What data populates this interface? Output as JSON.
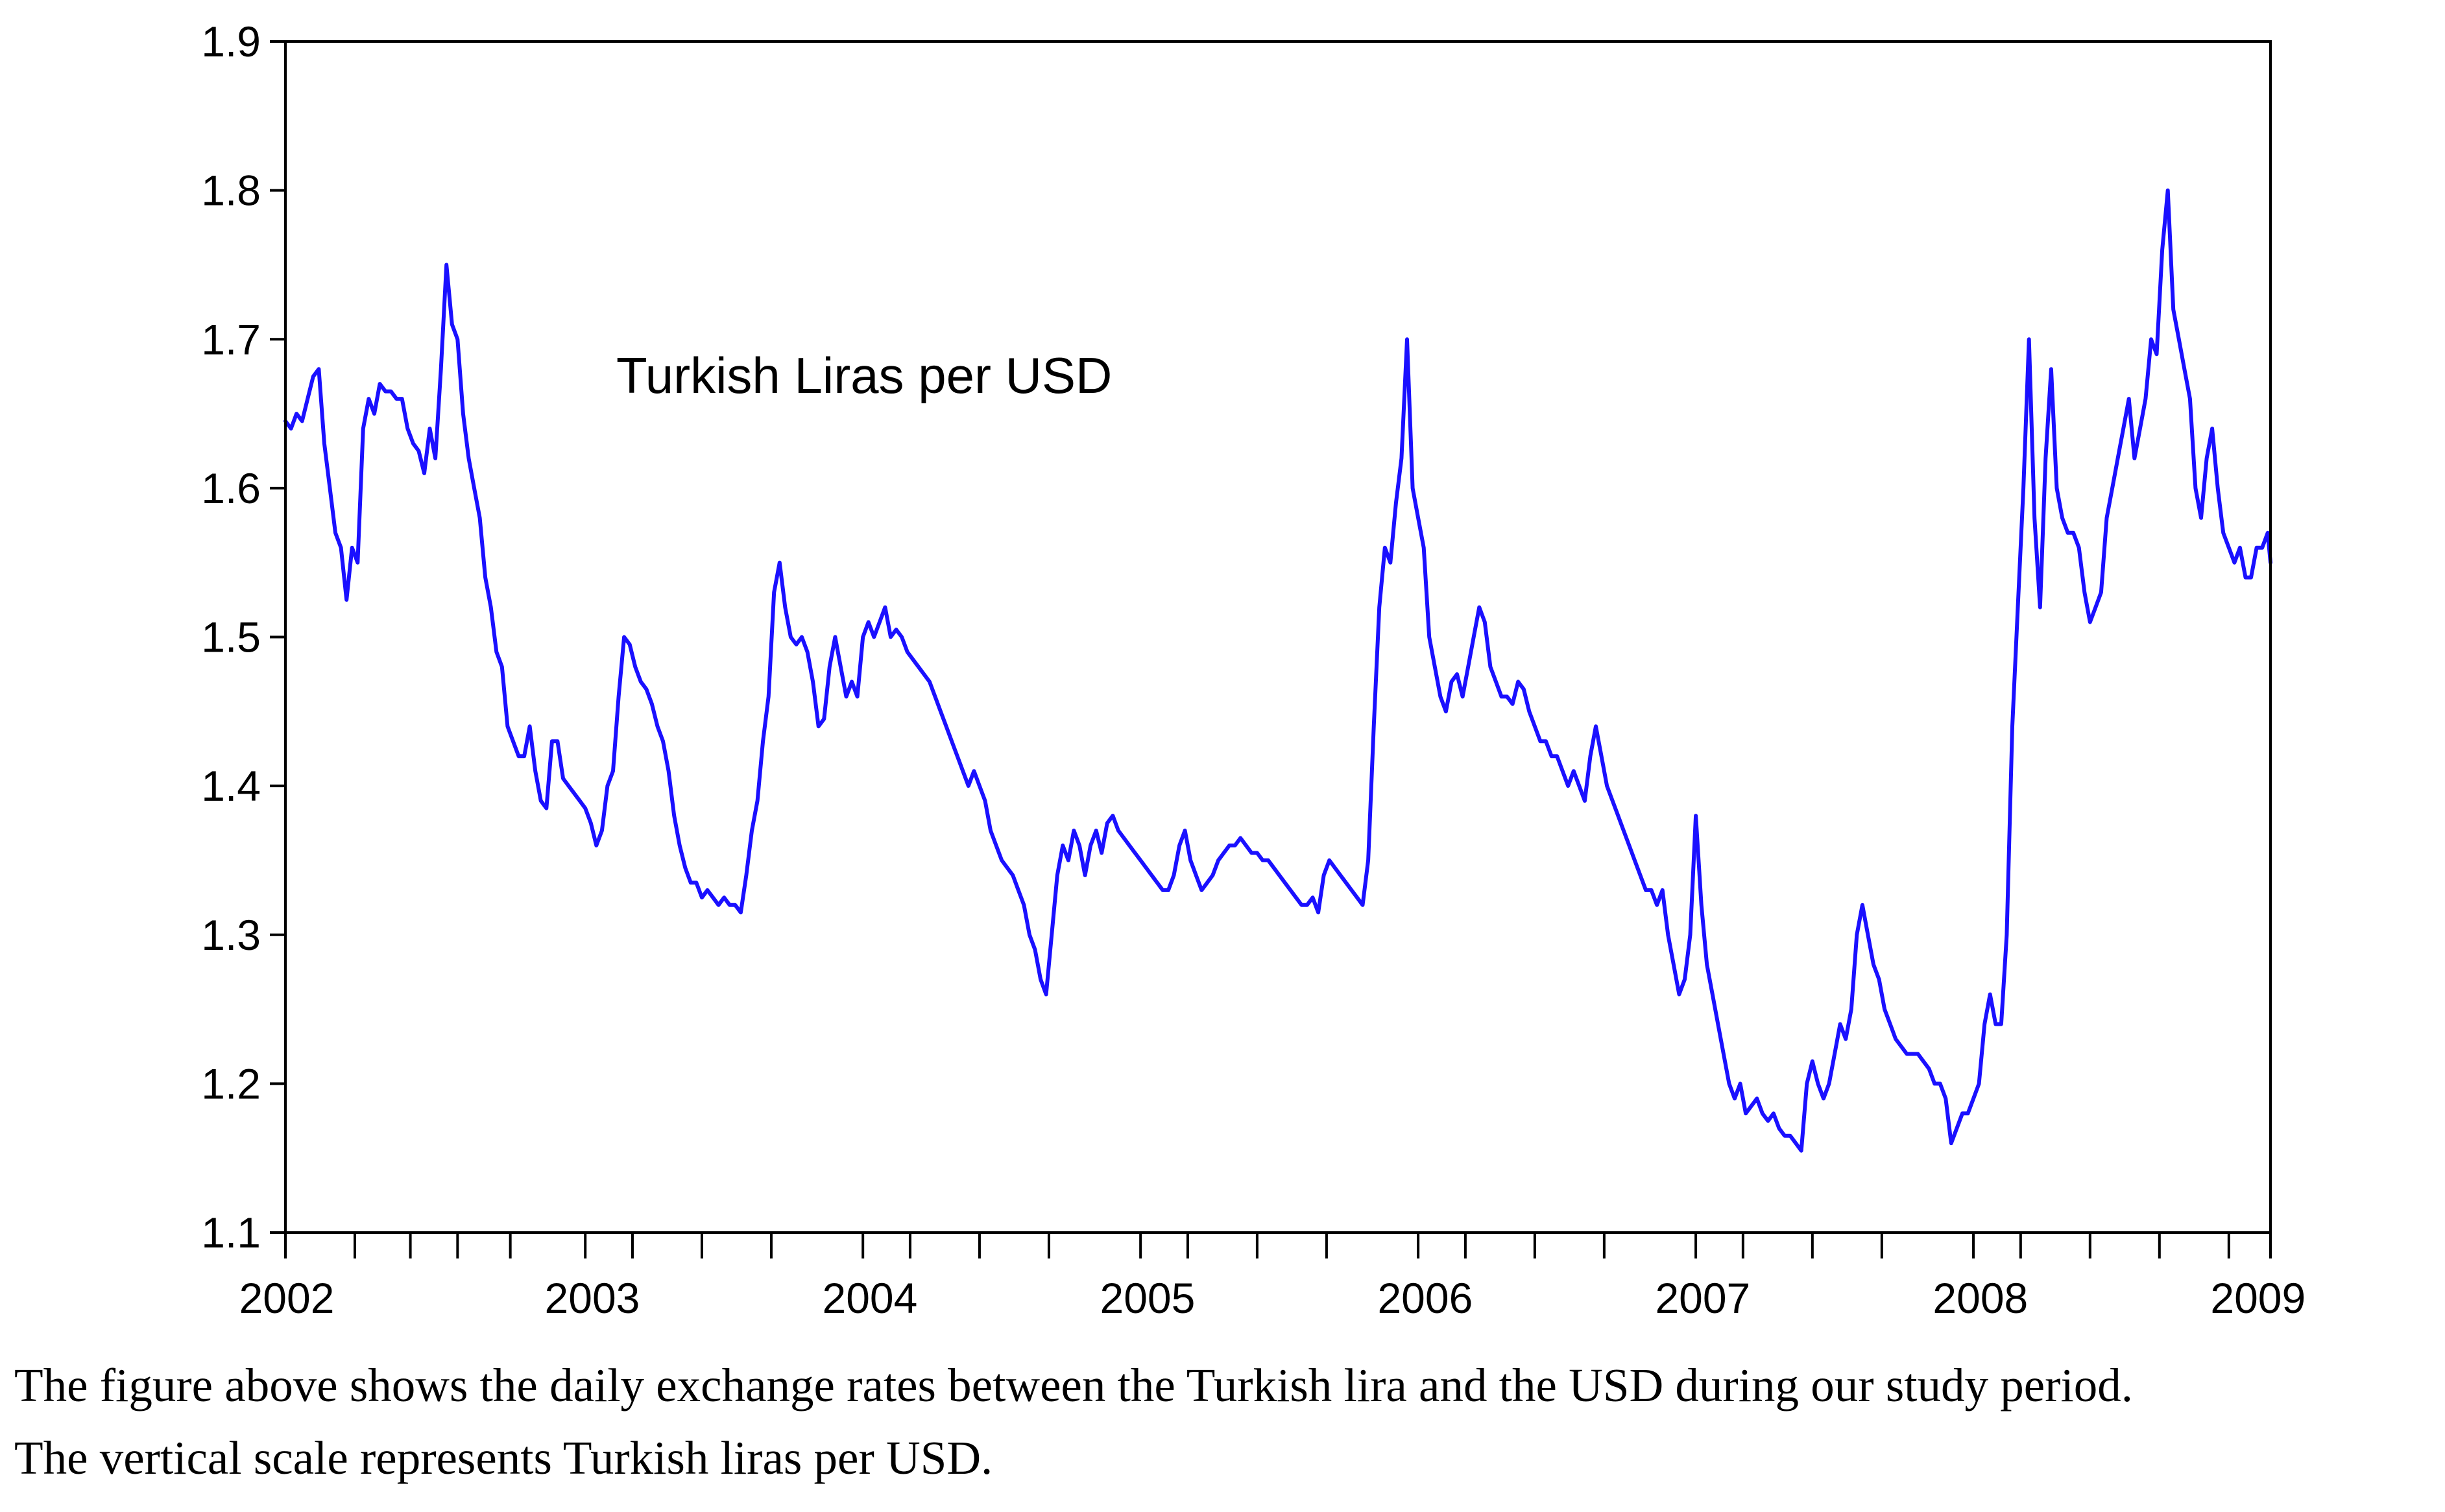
{
  "chart_data": {
    "type": "line",
    "title": "",
    "annotation": "Turkish Liras per USD",
    "xlabel": "",
    "ylabel": "",
    "ylim": [
      1.1,
      1.9
    ],
    "xlim": [
      2002.0,
      2009.15
    ],
    "grid": false,
    "series_color": "#1a10ff",
    "y_ticks": [
      1.1,
      1.2,
      1.3,
      1.4,
      1.5,
      1.6,
      1.7,
      1.8,
      1.9
    ],
    "y_tick_labels": [
      "1.1",
      "1.2",
      "1.3",
      "1.4",
      "1.5",
      "1.6",
      "1.7",
      "1.8",
      "1.9"
    ],
    "x_year_labels": [
      {
        "label": "2002",
        "x": 2002.0
      },
      {
        "label": "2003",
        "x": 2003.0
      },
      {
        "label": "2004",
        "x": 2004.0
      },
      {
        "label": "2005",
        "x": 2005.0
      },
      {
        "label": "2006",
        "x": 2006.0
      },
      {
        "label": "2007",
        "x": 2007.0
      },
      {
        "label": "2008",
        "x": 2008.0
      },
      {
        "label": "2009",
        "x": 2009.0
      }
    ],
    "x_minor_ticks": [
      2002.0,
      2002.25,
      2002.45,
      2002.62,
      2002.81,
      2003.08,
      2003.25,
      2003.5,
      2003.75,
      2004.08,
      2004.25,
      2004.5,
      2004.75,
      2005.08,
      2005.25,
      2005.5,
      2005.75,
      2006.08,
      2006.25,
      2006.5,
      2006.75,
      2007.08,
      2007.25,
      2007.5,
      2007.75,
      2008.08,
      2008.25,
      2008.5,
      2008.75,
      2009.0,
      2009.15
    ],
    "series": [
      {
        "name": "Turkish Liras per USD",
        "x": [
          2002.0,
          2002.02,
          2002.04,
          2002.06,
          2002.08,
          2002.1,
          2002.12,
          2002.14,
          2002.16,
          2002.18,
          2002.2,
          2002.22,
          2002.24,
          2002.26,
          2002.28,
          2002.3,
          2002.32,
          2002.34,
          2002.36,
          2002.38,
          2002.4,
          2002.42,
          2002.44,
          2002.46,
          2002.48,
          2002.5,
          2002.52,
          2002.54,
          2002.56,
          2002.58,
          2002.6,
          2002.62,
          2002.64,
          2002.66,
          2002.68,
          2002.7,
          2002.72,
          2002.74,
          2002.76,
          2002.78,
          2002.8,
          2002.82,
          2002.84,
          2002.86,
          2002.88,
          2002.9,
          2002.92,
          2002.94,
          2002.96,
          2002.98,
          2003.0,
          2003.02,
          2003.04,
          2003.06,
          2003.08,
          2003.1,
          2003.12,
          2003.14,
          2003.16,
          2003.18,
          2003.2,
          2003.22,
          2003.24,
          2003.26,
          2003.28,
          2003.3,
          2003.32,
          2003.34,
          2003.36,
          2003.38,
          2003.4,
          2003.42,
          2003.44,
          2003.46,
          2003.48,
          2003.5,
          2003.52,
          2003.54,
          2003.56,
          2003.58,
          2003.6,
          2003.62,
          2003.64,
          2003.66,
          2003.68,
          2003.7,
          2003.72,
          2003.74,
          2003.76,
          2003.78,
          2003.8,
          2003.82,
          2003.84,
          2003.86,
          2003.88,
          2003.9,
          2003.92,
          2003.94,
          2003.96,
          2003.98,
          2004.0,
          2004.02,
          2004.04,
          2004.06,
          2004.08,
          2004.1,
          2004.12,
          2004.14,
          2004.16,
          2004.18,
          2004.2,
          2004.22,
          2004.24,
          2004.26,
          2004.28,
          2004.3,
          2004.32,
          2004.34,
          2004.36,
          2004.38,
          2004.4,
          2004.42,
          2004.44,
          2004.46,
          2004.48,
          2004.5,
          2004.52,
          2004.54,
          2004.56,
          2004.58,
          2004.6,
          2004.62,
          2004.64,
          2004.66,
          2004.68,
          2004.7,
          2004.72,
          2004.74,
          2004.76,
          2004.78,
          2004.8,
          2004.82,
          2004.84,
          2004.86,
          2004.88,
          2004.9,
          2004.92,
          2004.94,
          2004.96,
          2004.98,
          2005.0,
          2005.02,
          2005.04,
          2005.06,
          2005.08,
          2005.1,
          2005.12,
          2005.14,
          2005.16,
          2005.18,
          2005.2,
          2005.22,
          2005.24,
          2005.26,
          2005.28,
          2005.3,
          2005.32,
          2005.34,
          2005.36,
          2005.38,
          2005.4,
          2005.42,
          2005.44,
          2005.46,
          2005.48,
          2005.5,
          2005.52,
          2005.54,
          2005.56,
          2005.58,
          2005.6,
          2005.62,
          2005.64,
          2005.66,
          2005.68,
          2005.7,
          2005.72,
          2005.74,
          2005.76,
          2005.78,
          2005.8,
          2005.82,
          2005.84,
          2005.86,
          2005.88,
          2005.9,
          2005.92,
          2005.94,
          2005.96,
          2005.98,
          2006.0,
          2006.02,
          2006.04,
          2006.06,
          2006.08,
          2006.1,
          2006.12,
          2006.14,
          2006.16,
          2006.18,
          2006.2,
          2006.22,
          2006.24,
          2006.26,
          2006.28,
          2006.3,
          2006.32,
          2006.34,
          2006.36,
          2006.38,
          2006.4,
          2006.42,
          2006.44,
          2006.46,
          2006.48,
          2006.5,
          2006.52,
          2006.54,
          2006.56,
          2006.58,
          2006.6,
          2006.62,
          2006.64,
          2006.66,
          2006.68,
          2006.7,
          2006.72,
          2006.74,
          2006.76,
          2006.78,
          2006.8,
          2006.82,
          2006.84,
          2006.86,
          2006.88,
          2006.9,
          2006.92,
          2006.94,
          2006.96,
          2006.98,
          2007.0,
          2007.02,
          2007.04,
          2007.06,
          2007.08,
          2007.1,
          2007.12,
          2007.14,
          2007.16,
          2007.18,
          2007.2,
          2007.22,
          2007.24,
          2007.26,
          2007.28,
          2007.3,
          2007.32,
          2007.34,
          2007.36,
          2007.38,
          2007.4,
          2007.42,
          2007.44,
          2007.46,
          2007.48,
          2007.5,
          2007.52,
          2007.54,
          2007.56,
          2007.58,
          2007.6,
          2007.62,
          2007.64,
          2007.66,
          2007.68,
          2007.7,
          2007.72,
          2007.74,
          2007.76,
          2007.78,
          2007.8,
          2007.82,
          2007.84,
          2007.86,
          2007.88,
          2007.9,
          2007.92,
          2007.94,
          2007.96,
          2007.98,
          2008.0,
          2008.02,
          2008.04,
          2008.06,
          2008.08,
          2008.1,
          2008.12,
          2008.14,
          2008.16,
          2008.18,
          2008.2,
          2008.22,
          2008.24,
          2008.26,
          2008.28,
          2008.3,
          2008.32,
          2008.34,
          2008.36,
          2008.38,
          2008.4,
          2008.42,
          2008.44,
          2008.46,
          2008.48,
          2008.5,
          2008.52,
          2008.54,
          2008.56,
          2008.58,
          2008.6,
          2008.62,
          2008.64,
          2008.66,
          2008.68,
          2008.7,
          2008.72,
          2008.74,
          2008.76,
          2008.78,
          2008.8,
          2008.82,
          2008.84,
          2008.86,
          2008.88,
          2008.9,
          2008.92,
          2008.94,
          2008.96,
          2008.98,
          2009.0,
          2009.02,
          2009.04,
          2009.06,
          2009.08,
          2009.1,
          2009.12,
          2009.14,
          2009.15
        ],
        "values": [
          1.645,
          1.64,
          1.65,
          1.645,
          1.66,
          1.675,
          1.68,
          1.63,
          1.6,
          1.57,
          1.56,
          1.525,
          1.56,
          1.55,
          1.64,
          1.66,
          1.65,
          1.67,
          1.665,
          1.665,
          1.66,
          1.66,
          1.64,
          1.63,
          1.625,
          1.61,
          1.64,
          1.62,
          1.68,
          1.75,
          1.71,
          1.7,
          1.65,
          1.62,
          1.6,
          1.58,
          1.54,
          1.52,
          1.49,
          1.48,
          1.44,
          1.43,
          1.42,
          1.42,
          1.44,
          1.41,
          1.39,
          1.385,
          1.43,
          1.43,
          1.405,
          1.4,
          1.395,
          1.39,
          1.385,
          1.375,
          1.36,
          1.37,
          1.4,
          1.41,
          1.46,
          1.5,
          1.495,
          1.48,
          1.47,
          1.465,
          1.455,
          1.44,
          1.43,
          1.41,
          1.38,
          1.36,
          1.345,
          1.335,
          1.335,
          1.325,
          1.33,
          1.325,
          1.32,
          1.325,
          1.32,
          1.32,
          1.315,
          1.34,
          1.37,
          1.39,
          1.43,
          1.46,
          1.53,
          1.55,
          1.52,
          1.5,
          1.495,
          1.5,
          1.49,
          1.47,
          1.44,
          1.445,
          1.48,
          1.5,
          1.48,
          1.46,
          1.47,
          1.46,
          1.5,
          1.51,
          1.5,
          1.51,
          1.52,
          1.5,
          1.505,
          1.5,
          1.49,
          1.485,
          1.48,
          1.475,
          1.47,
          1.46,
          1.45,
          1.44,
          1.43,
          1.42,
          1.41,
          1.4,
          1.41,
          1.4,
          1.39,
          1.37,
          1.36,
          1.35,
          1.345,
          1.34,
          1.33,
          1.32,
          1.3,
          1.29,
          1.27,
          1.26,
          1.3,
          1.34,
          1.36,
          1.35,
          1.37,
          1.36,
          1.34,
          1.36,
          1.37,
          1.355,
          1.375,
          1.38,
          1.37,
          1.365,
          1.36,
          1.355,
          1.35,
          1.345,
          1.34,
          1.335,
          1.33,
          1.33,
          1.34,
          1.36,
          1.37,
          1.35,
          1.34,
          1.33,
          1.335,
          1.34,
          1.35,
          1.355,
          1.36,
          1.36,
          1.365,
          1.36,
          1.355,
          1.355,
          1.35,
          1.35,
          1.345,
          1.34,
          1.335,
          1.33,
          1.325,
          1.32,
          1.32,
          1.325,
          1.315,
          1.34,
          1.35,
          1.345,
          1.34,
          1.335,
          1.33,
          1.325,
          1.32,
          1.35,
          1.44,
          1.52,
          1.56,
          1.55,
          1.59,
          1.62,
          1.7,
          1.6,
          1.58,
          1.56,
          1.5,
          1.48,
          1.46,
          1.45,
          1.47,
          1.475,
          1.46,
          1.48,
          1.5,
          1.52,
          1.51,
          1.48,
          1.47,
          1.46,
          1.46,
          1.455,
          1.47,
          1.465,
          1.45,
          1.44,
          1.43,
          1.43,
          1.42,
          1.42,
          1.41,
          1.4,
          1.41,
          1.4,
          1.39,
          1.42,
          1.44,
          1.42,
          1.4,
          1.39,
          1.38,
          1.37,
          1.36,
          1.35,
          1.34,
          1.33,
          1.33,
          1.32,
          1.33,
          1.3,
          1.28,
          1.26,
          1.27,
          1.3,
          1.38,
          1.32,
          1.28,
          1.26,
          1.24,
          1.22,
          1.2,
          1.19,
          1.2,
          1.18,
          1.185,
          1.19,
          1.18,
          1.175,
          1.18,
          1.17,
          1.165,
          1.165,
          1.16,
          1.155,
          1.2,
          1.215,
          1.2,
          1.19,
          1.2,
          1.22,
          1.24,
          1.23,
          1.25,
          1.3,
          1.32,
          1.3,
          1.28,
          1.27,
          1.25,
          1.24,
          1.23,
          1.225,
          1.22,
          1.22,
          1.22,
          1.215,
          1.21,
          1.2,
          1.2,
          1.19,
          1.16,
          1.17,
          1.18,
          1.18,
          1.19,
          1.2,
          1.24,
          1.26,
          1.24,
          1.24,
          1.3,
          1.44,
          1.52,
          1.6,
          1.7,
          1.58,
          1.52,
          1.62,
          1.68,
          1.6,
          1.58,
          1.57,
          1.57,
          1.56,
          1.53,
          1.51,
          1.52,
          1.53,
          1.58,
          1.6,
          1.62,
          1.64,
          1.66,
          1.62,
          1.64,
          1.66,
          1.7,
          1.69,
          1.76,
          1.8,
          1.72,
          1.7,
          1.68,
          1.66,
          1.6,
          1.58,
          1.62,
          1.64,
          1.6,
          1.57,
          1.56,
          1.55,
          1.56,
          1.54,
          1.54,
          1.56,
          1.56,
          1.57,
          1.55
        ]
      }
    ]
  },
  "caption": {
    "line1": "The figure above shows the daily exchange rates between the Turkish lira and the USD during our study period.",
    "line2": "The vertical scale represents Turkish liras per USD."
  }
}
